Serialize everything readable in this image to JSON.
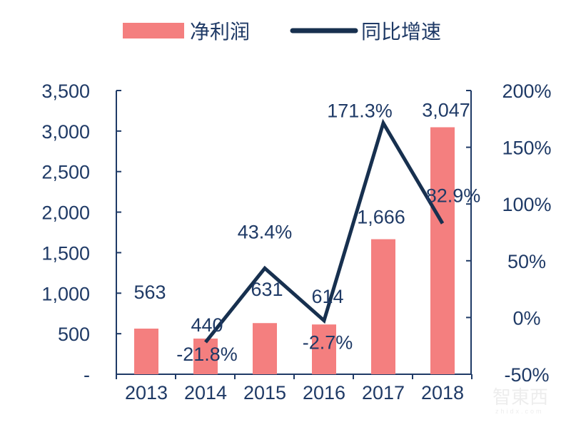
{
  "chart_data": {
    "type": "bar+line",
    "categories": [
      "2013",
      "2014",
      "2015",
      "2016",
      "2017",
      "2018"
    ],
    "series": [
      {
        "name": "净利润",
        "type": "bar",
        "axis": "left",
        "values": [
          563,
          440,
          631,
          614,
          1666,
          3047
        ],
        "labels": [
          "563",
          "440",
          "631",
          "614",
          "1,666",
          "3,047"
        ]
      },
      {
        "name": "同比增速",
        "type": "line",
        "axis": "right",
        "values": [
          null,
          -21.8,
          43.4,
          -2.7,
          171.3,
          82.9
        ],
        "labels": [
          "",
          "-21.8%",
          "43.4%",
          "-2.7%",
          "171.3%",
          "82.9%"
        ]
      }
    ],
    "left_axis": {
      "ylim": [
        0,
        3500
      ],
      "ticks": [
        "-",
        "500",
        "1,000",
        "1,500",
        "2,000",
        "2,500",
        "3,000",
        "3,500"
      ]
    },
    "right_axis": {
      "ylim": [
        -50,
        200
      ],
      "ticks": [
        "-50%",
        "0%",
        "50%",
        "100%",
        "150%",
        "200%"
      ]
    },
    "legend": {
      "placement": "top"
    },
    "grid": false,
    "colors": {
      "bar": "#f47f7f",
      "line": "#17304f",
      "text": "#1f3a66",
      "axis": "#1f3a66"
    }
  },
  "watermark": {
    "text": "智東西",
    "sub": "zhidx.com"
  }
}
